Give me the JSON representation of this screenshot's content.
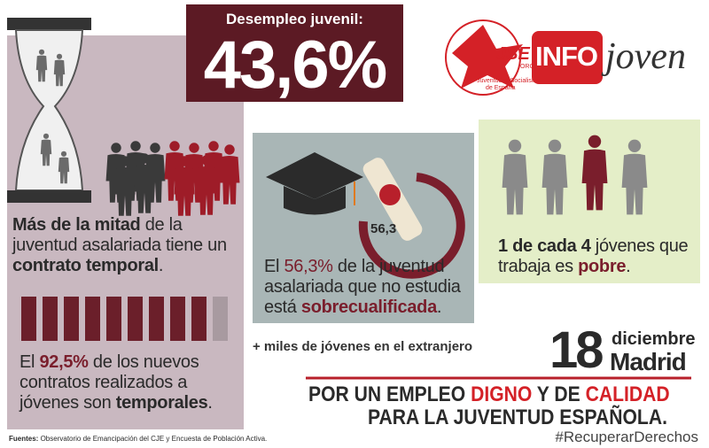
{
  "header": {
    "label": "Desempleo juvenil:",
    "value": "43,6%"
  },
  "logo": {
    "jse": "JSE",
    "org": ".ORG",
    "org_name_1": "Juventudes Socialistas",
    "org_name_2": "de España",
    "info": "INFO",
    "joven": "joven"
  },
  "temporal": {
    "segments": [
      "Más de la mitad",
      " de la juventud asalariada tiene un ",
      "contrato temporal",
      "."
    ]
  },
  "new_contracts": {
    "segments": [
      "El ",
      "92,5%",
      " de los nuevos contratos realizados a jóvenes son ",
      "temporales",
      "."
    ]
  },
  "overqualified": {
    "badge": "56,3",
    "segments": [
      "El ",
      "56,3%",
      " de la juventud asalariada que no estudia está ",
      "sobrecualificada",
      "."
    ]
  },
  "poverty": {
    "segments": [
      "1 de cada 4",
      " jóvenes que trabaja es ",
      "pobre",
      "."
    ]
  },
  "abroad": "+ miles de jóvenes en el extranjero",
  "event": {
    "day": "18",
    "month": "diciembre",
    "city": "Madrid"
  },
  "slogan": {
    "line1": [
      "POR UN EMPLEO ",
      "DIGNO",
      " Y DE ",
      "CALIDAD"
    ],
    "line2": "PARA LA JUVENTUD ESPAÑOLA."
  },
  "hashtag": "#RecuperarDerechos",
  "sources": {
    "label": "Fuentes:",
    "text": "Observatorio de Emancipación del CJE y  Encuesta de Población Activa."
  }
}
